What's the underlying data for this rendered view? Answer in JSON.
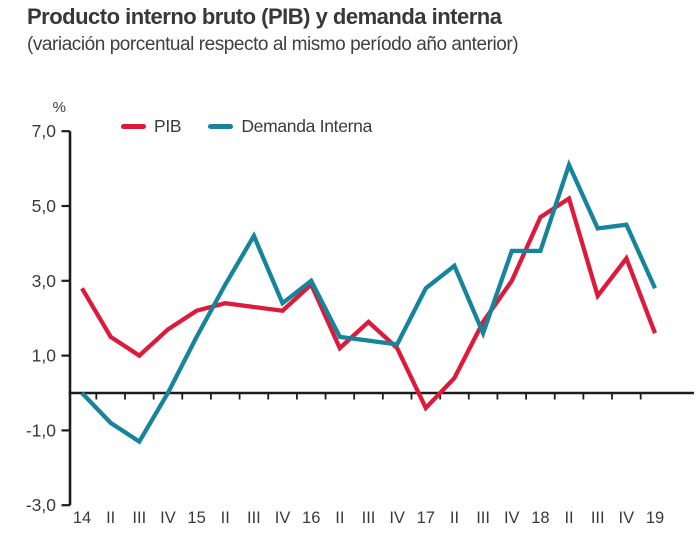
{
  "title": "Producto interno bruto (PIB) y demanda interna",
  "subtitle": "(variación porcentual respecto al mismo período año anterior)",
  "chart_data": {
    "type": "line",
    "unit_label": "%",
    "categories": [
      "14",
      "II",
      "III",
      "IV",
      "15",
      "II",
      "III",
      "IV",
      "16",
      "II",
      "III",
      "IV",
      "17",
      "II",
      "III",
      "IV",
      "18",
      "II",
      "III",
      "IV",
      "19"
    ],
    "series": [
      {
        "name": "PIB",
        "color": "#de1a3b",
        "values": [
          2.8,
          1.5,
          1.0,
          1.7,
          2.2,
          2.4,
          2.3,
          2.2,
          2.9,
          1.2,
          1.9,
          1.2,
          -0.4,
          0.4,
          1.9,
          3.0,
          4.7,
          5.2,
          2.6,
          3.6,
          1.6
        ]
      },
      {
        "name": "Demanda Interna",
        "color": "#16859b",
        "values": [
          0.0,
          -0.8,
          -1.3,
          0.0,
          1.5,
          2.9,
          4.2,
          2.4,
          3.0,
          1.5,
          1.4,
          1.3,
          2.8,
          3.4,
          1.6,
          3.8,
          3.8,
          6.1,
          4.4,
          4.5,
          2.8
        ]
      }
    ],
    "y_ticks": {
      "labels": [
        "7,0",
        "5,0",
        "3,0",
        "1,0",
        "-1,0",
        "-3,0"
      ],
      "values": [
        7,
        5,
        3,
        1,
        -1,
        -3
      ]
    },
    "ylim": [
      -3,
      7
    ],
    "baseline": 0,
    "grid": false,
    "legend_position": "top-left",
    "axis_color": "#1d1d1b"
  }
}
